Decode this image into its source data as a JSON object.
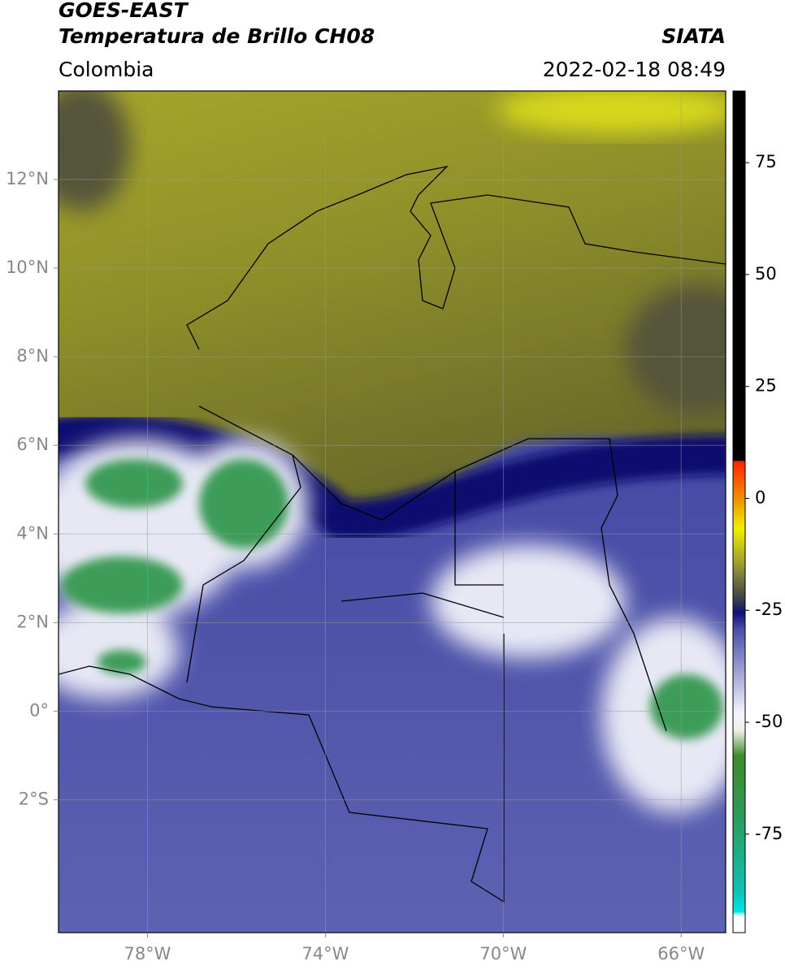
{
  "header": {
    "title": "GOES-EAST",
    "subtitle": "Temperatura de Brillo CH08",
    "region": "Colombia",
    "source": "SIATA",
    "datetime": "2022-02-18 08:49"
  },
  "map": {
    "xlim": [
      -80,
      -65
    ],
    "ylim": [
      -5,
      14
    ],
    "xticks": [
      {
        "value": -78,
        "label": "78°W"
      },
      {
        "value": -74,
        "label": "74°W"
      },
      {
        "value": -70,
        "label": "70°W"
      },
      {
        "value": -66,
        "label": "66°W"
      }
    ],
    "yticks": [
      {
        "value": 12,
        "label": "12°N"
      },
      {
        "value": 10,
        "label": "10°N"
      },
      {
        "value": 8,
        "label": "8°N"
      },
      {
        "value": 6,
        "label": "6°N"
      },
      {
        "value": 4,
        "label": "4°N"
      },
      {
        "value": 2,
        "label": "2°N"
      },
      {
        "value": 0,
        "label": "0°"
      },
      {
        "value": -2,
        "label": "2°S"
      }
    ],
    "grid": true,
    "colorbar": {
      "lim": [
        -97,
        91
      ],
      "ticks": [
        75,
        50,
        25,
        0,
        -25,
        -50,
        -75
      ]
    }
  }
}
